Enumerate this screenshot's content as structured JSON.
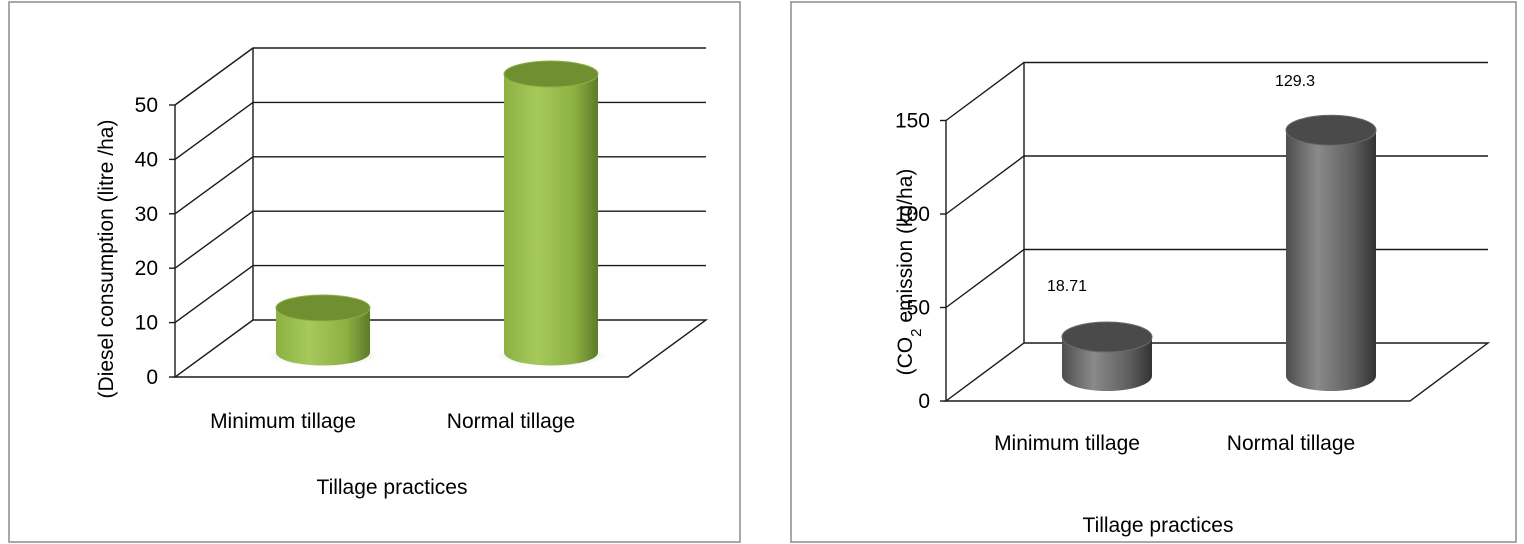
{
  "charts": [
    {
      "id": "diesel",
      "chart_data": {
        "type": "bar",
        "categories": [
          "Minimum tillage",
          "Normal tillage"
        ],
        "values": [
          8,
          51
        ],
        "ylim": [
          0,
          50
        ],
        "yticks": [
          0,
          10,
          20,
          30,
          40,
          50
        ],
        "xlabel": "Tillage practices",
        "ylabel": "(Diesel consumption (litre /ha)",
        "data_labels": [
          "",
          ""
        ],
        "grid": true,
        "style": "3d-cylinder"
      },
      "colors": {
        "bar_light": "#a6c95c",
        "bar_mid": "#8db043",
        "bar_dark": "#5d7a28",
        "bar_top": "#6f8f30"
      }
    },
    {
      "id": "co2",
      "chart_data": {
        "type": "bar",
        "categories": [
          "Minimum tillage",
          "Normal tillage"
        ],
        "values": [
          18.71,
          129.3
        ],
        "ylim": [
          0,
          150
        ],
        "yticks": [
          0,
          50,
          100,
          150
        ],
        "xlabel": "Tillage practices",
        "ylabel_prefix": "(CO",
        "ylabel_sub": "2",
        "ylabel_suffix": "  emission (kg/ha)",
        "data_labels": [
          "18.71",
          "129.3"
        ],
        "grid": true,
        "style": "3d-cylinder"
      },
      "colors": {
        "bar_light": "#8a8a8a",
        "bar_mid": "#6a6a6a",
        "bar_dark": "#3a3a3a",
        "bar_top": "#4a4a4a"
      }
    }
  ]
}
